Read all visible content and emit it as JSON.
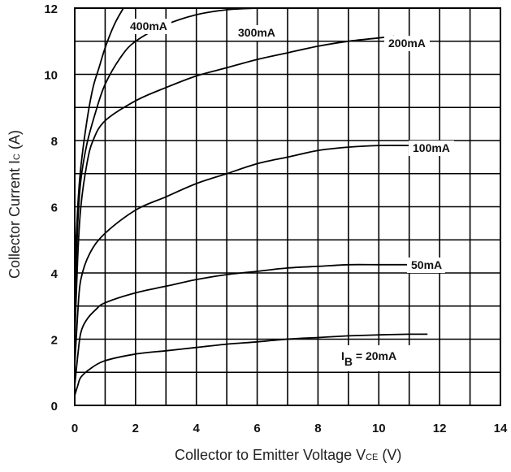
{
  "chart_data": {
    "type": "line",
    "xlabel": {
      "main": "Collector to Emitter Voltage  V",
      "sub": "CE",
      "unit": "  (V)"
    },
    "ylabel": {
      "main": "Collector Current  I",
      "sub": "C",
      "unit": "  (A)"
    },
    "xlim": [
      0,
      14
    ],
    "ylim": [
      0,
      12
    ],
    "xticks": [
      0,
      2,
      4,
      6,
      8,
      10,
      12,
      14
    ],
    "yticks": [
      0,
      2,
      4,
      6,
      8,
      10,
      12
    ],
    "grid": true,
    "series_prefix": {
      "pre": "I",
      "sub": "B",
      "post": " =  "
    },
    "series": [
      {
        "name": "20mA",
        "points": [
          [
            0,
            0.3
          ],
          [
            0.1,
            0.6
          ],
          [
            0.2,
            0.85
          ],
          [
            0.5,
            1.1
          ],
          [
            1,
            1.35
          ],
          [
            2,
            1.55
          ],
          [
            3,
            1.65
          ],
          [
            4,
            1.75
          ],
          [
            5,
            1.85
          ],
          [
            6,
            1.92
          ],
          [
            7,
            2.0
          ],
          [
            8,
            2.05
          ],
          [
            9,
            2.1
          ],
          [
            10,
            2.13
          ],
          [
            11,
            2.15
          ],
          [
            11.6,
            2.15
          ]
        ]
      },
      {
        "name": "50mA",
        "points": [
          [
            0,
            0.6
          ],
          [
            0.1,
            1.5
          ],
          [
            0.2,
            2.2
          ],
          [
            0.4,
            2.6
          ],
          [
            0.7,
            2.9
          ],
          [
            1,
            3.1
          ],
          [
            2,
            3.4
          ],
          [
            3,
            3.6
          ],
          [
            4,
            3.8
          ],
          [
            5,
            3.95
          ],
          [
            6,
            4.05
          ],
          [
            7,
            4.15
          ],
          [
            8,
            4.2
          ],
          [
            9,
            4.25
          ],
          [
            10,
            4.25
          ],
          [
            11,
            4.25
          ]
        ]
      },
      {
        "name": "100mA",
        "points": [
          [
            0,
            1.2
          ],
          [
            0.1,
            2.8
          ],
          [
            0.2,
            3.8
          ],
          [
            0.5,
            4.6
          ],
          [
            1,
            5.2
          ],
          [
            2,
            5.9
          ],
          [
            3,
            6.3
          ],
          [
            4,
            6.7
          ],
          [
            5,
            7.0
          ],
          [
            6,
            7.3
          ],
          [
            7,
            7.5
          ],
          [
            8,
            7.7
          ],
          [
            9,
            7.8
          ],
          [
            10,
            7.85
          ],
          [
            11,
            7.85
          ]
        ]
      },
      {
        "name": "200mA",
        "points": [
          [
            0,
            2.0
          ],
          [
            0.1,
            4.5
          ],
          [
            0.2,
            6.0
          ],
          [
            0.4,
            7.3
          ],
          [
            0.6,
            8.0
          ],
          [
            1,
            8.6
          ],
          [
            2,
            9.2
          ],
          [
            3,
            9.6
          ],
          [
            4,
            9.95
          ],
          [
            5,
            10.2
          ],
          [
            6,
            10.45
          ],
          [
            7,
            10.65
          ],
          [
            8,
            10.85
          ],
          [
            9,
            11.0
          ],
          [
            10,
            11.1
          ],
          [
            10.5,
            11.15
          ]
        ]
      },
      {
        "name": "300mA",
        "points": [
          [
            0,
            3.0
          ],
          [
            0.1,
            5.5
          ],
          [
            0.2,
            6.8
          ],
          [
            0.4,
            7.9
          ],
          [
            0.7,
            8.9
          ],
          [
            1,
            9.7
          ],
          [
            1.5,
            10.5
          ],
          [
            2,
            11.0
          ],
          [
            3,
            11.5
          ],
          [
            4,
            11.8
          ],
          [
            5,
            11.95
          ],
          [
            6,
            12.0
          ]
        ]
      },
      {
        "name": "400mA",
        "points": [
          [
            0,
            4.0
          ],
          [
            0.1,
            6.0
          ],
          [
            0.2,
            7.2
          ],
          [
            0.4,
            8.6
          ],
          [
            0.6,
            9.6
          ],
          [
            0.8,
            10.2
          ],
          [
            1,
            10.8
          ],
          [
            1.3,
            11.5
          ],
          [
            1.6,
            12.0
          ],
          [
            1.8,
            12.3
          ]
        ]
      }
    ]
  }
}
